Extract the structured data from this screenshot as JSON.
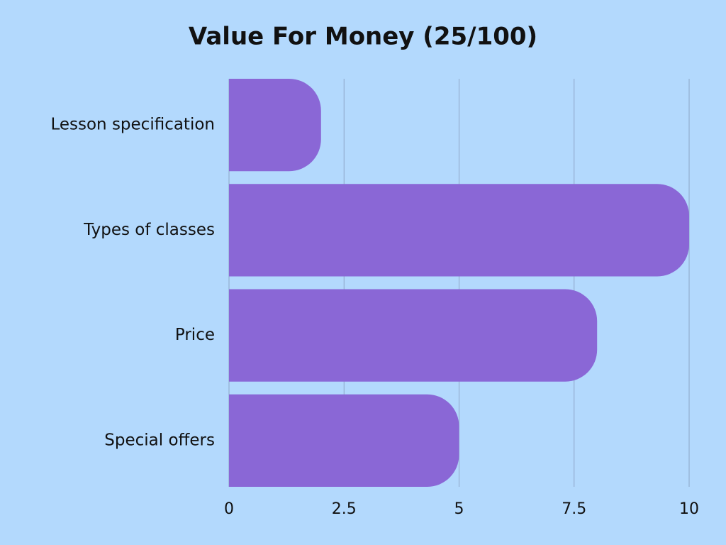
{
  "chart_data": {
    "type": "barh",
    "title": "Value For Money (25/100)",
    "categories": [
      "Lesson specification",
      "Types of classes",
      "Price",
      "Special offers"
    ],
    "values": [
      2,
      10,
      8,
      5
    ],
    "color": "#8a67d6",
    "xlim": [
      0,
      10
    ],
    "xticks": [
      0,
      2.5,
      5,
      7.5,
      10
    ],
    "grid": true
  }
}
